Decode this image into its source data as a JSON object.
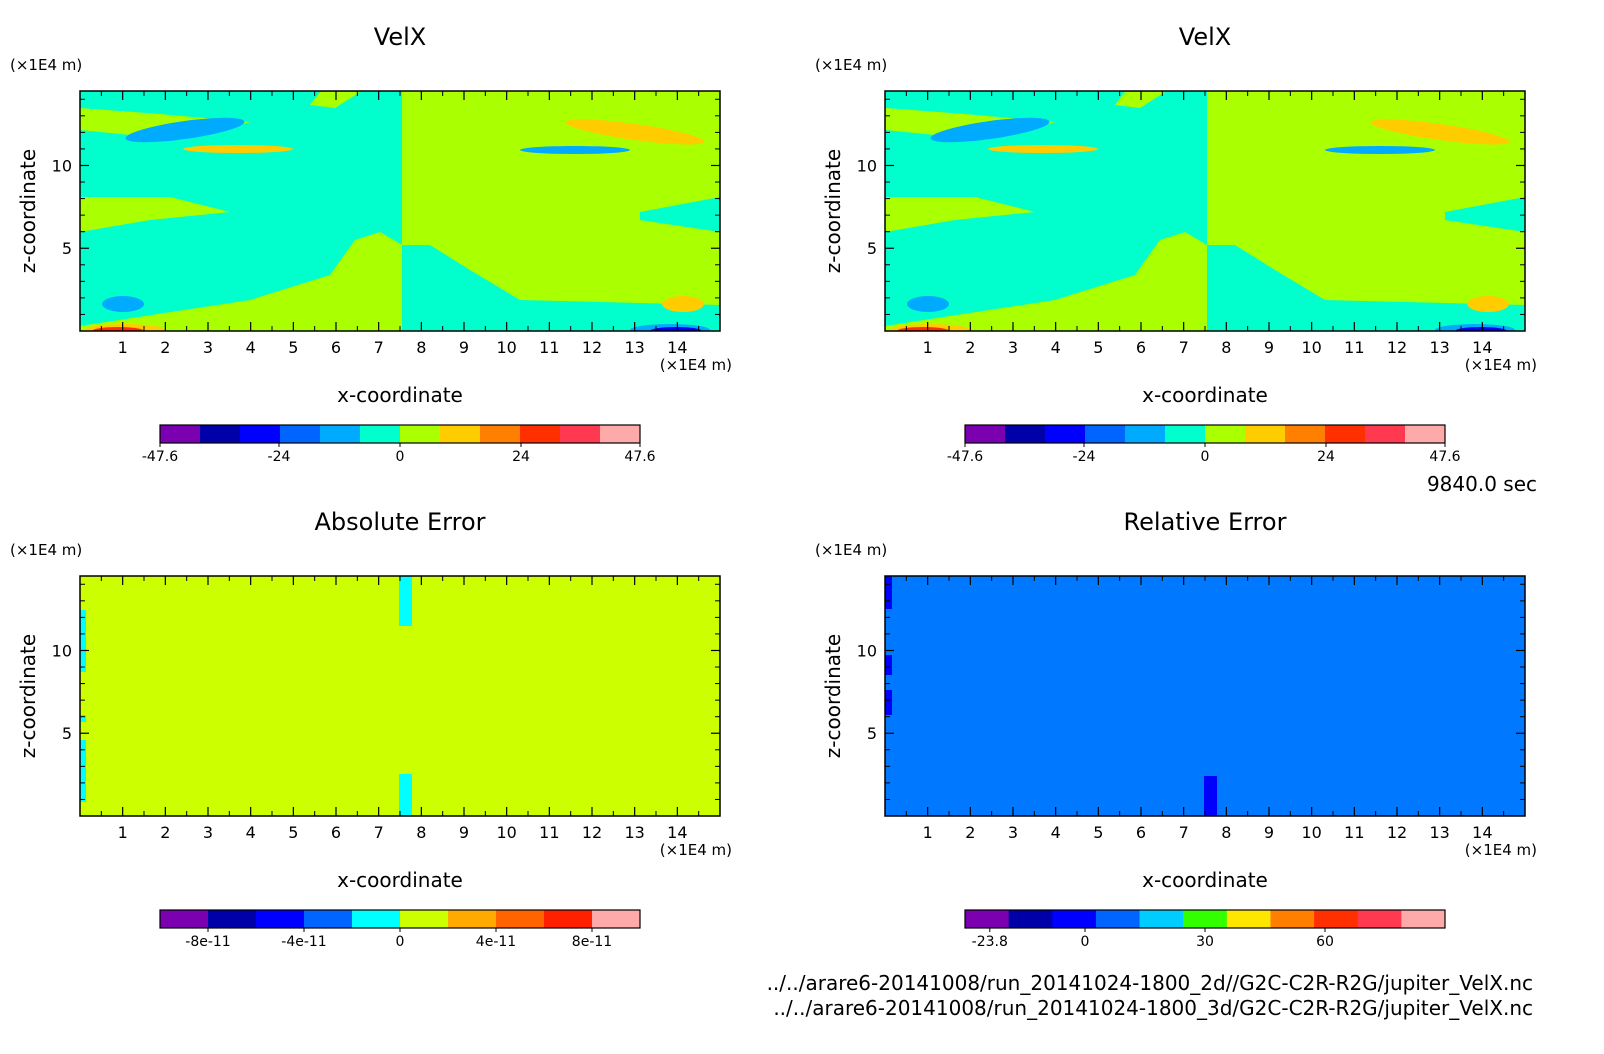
{
  "time_label": "9840.0 sec",
  "file_lines": [
    "../../arare6-20141008/run_20141024-1800_2d//G2C-C2R-R2G/jupiter_VelX.nc",
    "../../arare6-20141008/run_20141024-1800_3d/G2C-C2R-R2G/jupiter_VelX.nc"
  ],
  "chart_data": [
    {
      "type": "heatmap",
      "title": "VelX",
      "xlabel": "x-coordinate",
      "ylabel": "z-coordinate",
      "x_unit": "(×1E4 m)",
      "y_unit": "(×1E4 m)",
      "xlim": [
        0,
        15
      ],
      "ylim": [
        0,
        14.5
      ],
      "x_ticks": [
        "1",
        "2",
        "3",
        "4",
        "5",
        "6",
        "7",
        "8",
        "9",
        "10",
        "11",
        "12",
        "13",
        "14"
      ],
      "y_ticks": [
        "5",
        "10"
      ],
      "colorbar": {
        "colors": [
          "#7a00b0",
          "#0000a8",
          "#0000ff",
          "#0064ff",
          "#00aaff",
          "#00ffcc",
          "#aaff00",
          "#ffcc00",
          "#ff8000",
          "#ff3000",
          "#ff3a50",
          "#ffaaaa"
        ],
        "tick_labels": [
          "-47.6",
          "-24",
          "0",
          "24",
          "47.6"
        ],
        "tick_values": [
          -47.6,
          -24,
          0,
          24,
          47.6
        ],
        "range": [
          -47.6,
          47.6
        ]
      }
    },
    {
      "type": "heatmap",
      "title": "VelX",
      "xlabel": "x-coordinate",
      "ylabel": "z-coordinate",
      "x_unit": "(×1E4 m)",
      "y_unit": "(×1E4 m)",
      "xlim": [
        0,
        15
      ],
      "ylim": [
        0,
        14.5
      ],
      "x_ticks": [
        "1",
        "2",
        "3",
        "4",
        "5",
        "6",
        "7",
        "8",
        "9",
        "10",
        "11",
        "12",
        "13",
        "14"
      ],
      "y_ticks": [
        "5",
        "10"
      ],
      "colorbar": {
        "colors": [
          "#7a00b0",
          "#0000a8",
          "#0000ff",
          "#0064ff",
          "#00aaff",
          "#00ffcc",
          "#aaff00",
          "#ffcc00",
          "#ff8000",
          "#ff3000",
          "#ff3a50",
          "#ffaaaa"
        ],
        "tick_labels": [
          "-47.6",
          "-24",
          "0",
          "24",
          "47.6"
        ],
        "tick_values": [
          -47.6,
          -24,
          0,
          24,
          47.6
        ],
        "range": [
          -47.6,
          47.6
        ]
      }
    },
    {
      "type": "heatmap",
      "title": "Absolute Error",
      "xlabel": "x-coordinate",
      "ylabel": "z-coordinate",
      "x_unit": "(×1E4 m)",
      "y_unit": "(×1E4 m)",
      "xlim": [
        0,
        15
      ],
      "ylim": [
        0,
        14.5
      ],
      "x_ticks": [
        "1",
        "2",
        "3",
        "4",
        "5",
        "6",
        "7",
        "8",
        "9",
        "10",
        "11",
        "12",
        "13",
        "14"
      ],
      "y_ticks": [
        "5",
        "10"
      ],
      "background_color": "#ccff00",
      "colorbar": {
        "colors": [
          "#7a00b0",
          "#0000a8",
          "#0000ff",
          "#0064ff",
          "#00ffff",
          "#ccff00",
          "#ffaa00",
          "#ff6400",
          "#ff2000",
          "#ffaaaa"
        ],
        "tick_labels": [
          "-8e-11",
          "-4e-11",
          "0",
          "4e-11",
          "8e-11"
        ],
        "tick_values": [
          -8e-11,
          -4e-11,
          0,
          4e-11,
          8e-11
        ],
        "range": [
          -1e-10,
          1e-10
        ]
      }
    },
    {
      "type": "heatmap",
      "title": "Relative Error",
      "xlabel": "x-coordinate",
      "ylabel": "z-coordinate",
      "x_unit": "(×1E4 m)",
      "y_unit": "(×1E4 m)",
      "xlim": [
        0,
        15
      ],
      "ylim": [
        0,
        14.5
      ],
      "x_ticks": [
        "1",
        "2",
        "3",
        "4",
        "5",
        "6",
        "7",
        "8",
        "9",
        "10",
        "11",
        "12",
        "13",
        "14"
      ],
      "y_ticks": [
        "5",
        "10"
      ],
      "background_color": "#0078ff",
      "colorbar": {
        "colors": [
          "#7a00b0",
          "#0000a8",
          "#0000ff",
          "#0064ff",
          "#00ccff",
          "#32ff00",
          "#ffe600",
          "#ff8000",
          "#ff3000",
          "#ff3a50",
          "#ffaaaa"
        ],
        "tick_labels": [
          "-23.8",
          "0",
          "30",
          "60"
        ],
        "tick_values": [
          -23.8,
          0,
          30,
          60
        ],
        "range": [
          -30,
          90
        ]
      }
    }
  ]
}
